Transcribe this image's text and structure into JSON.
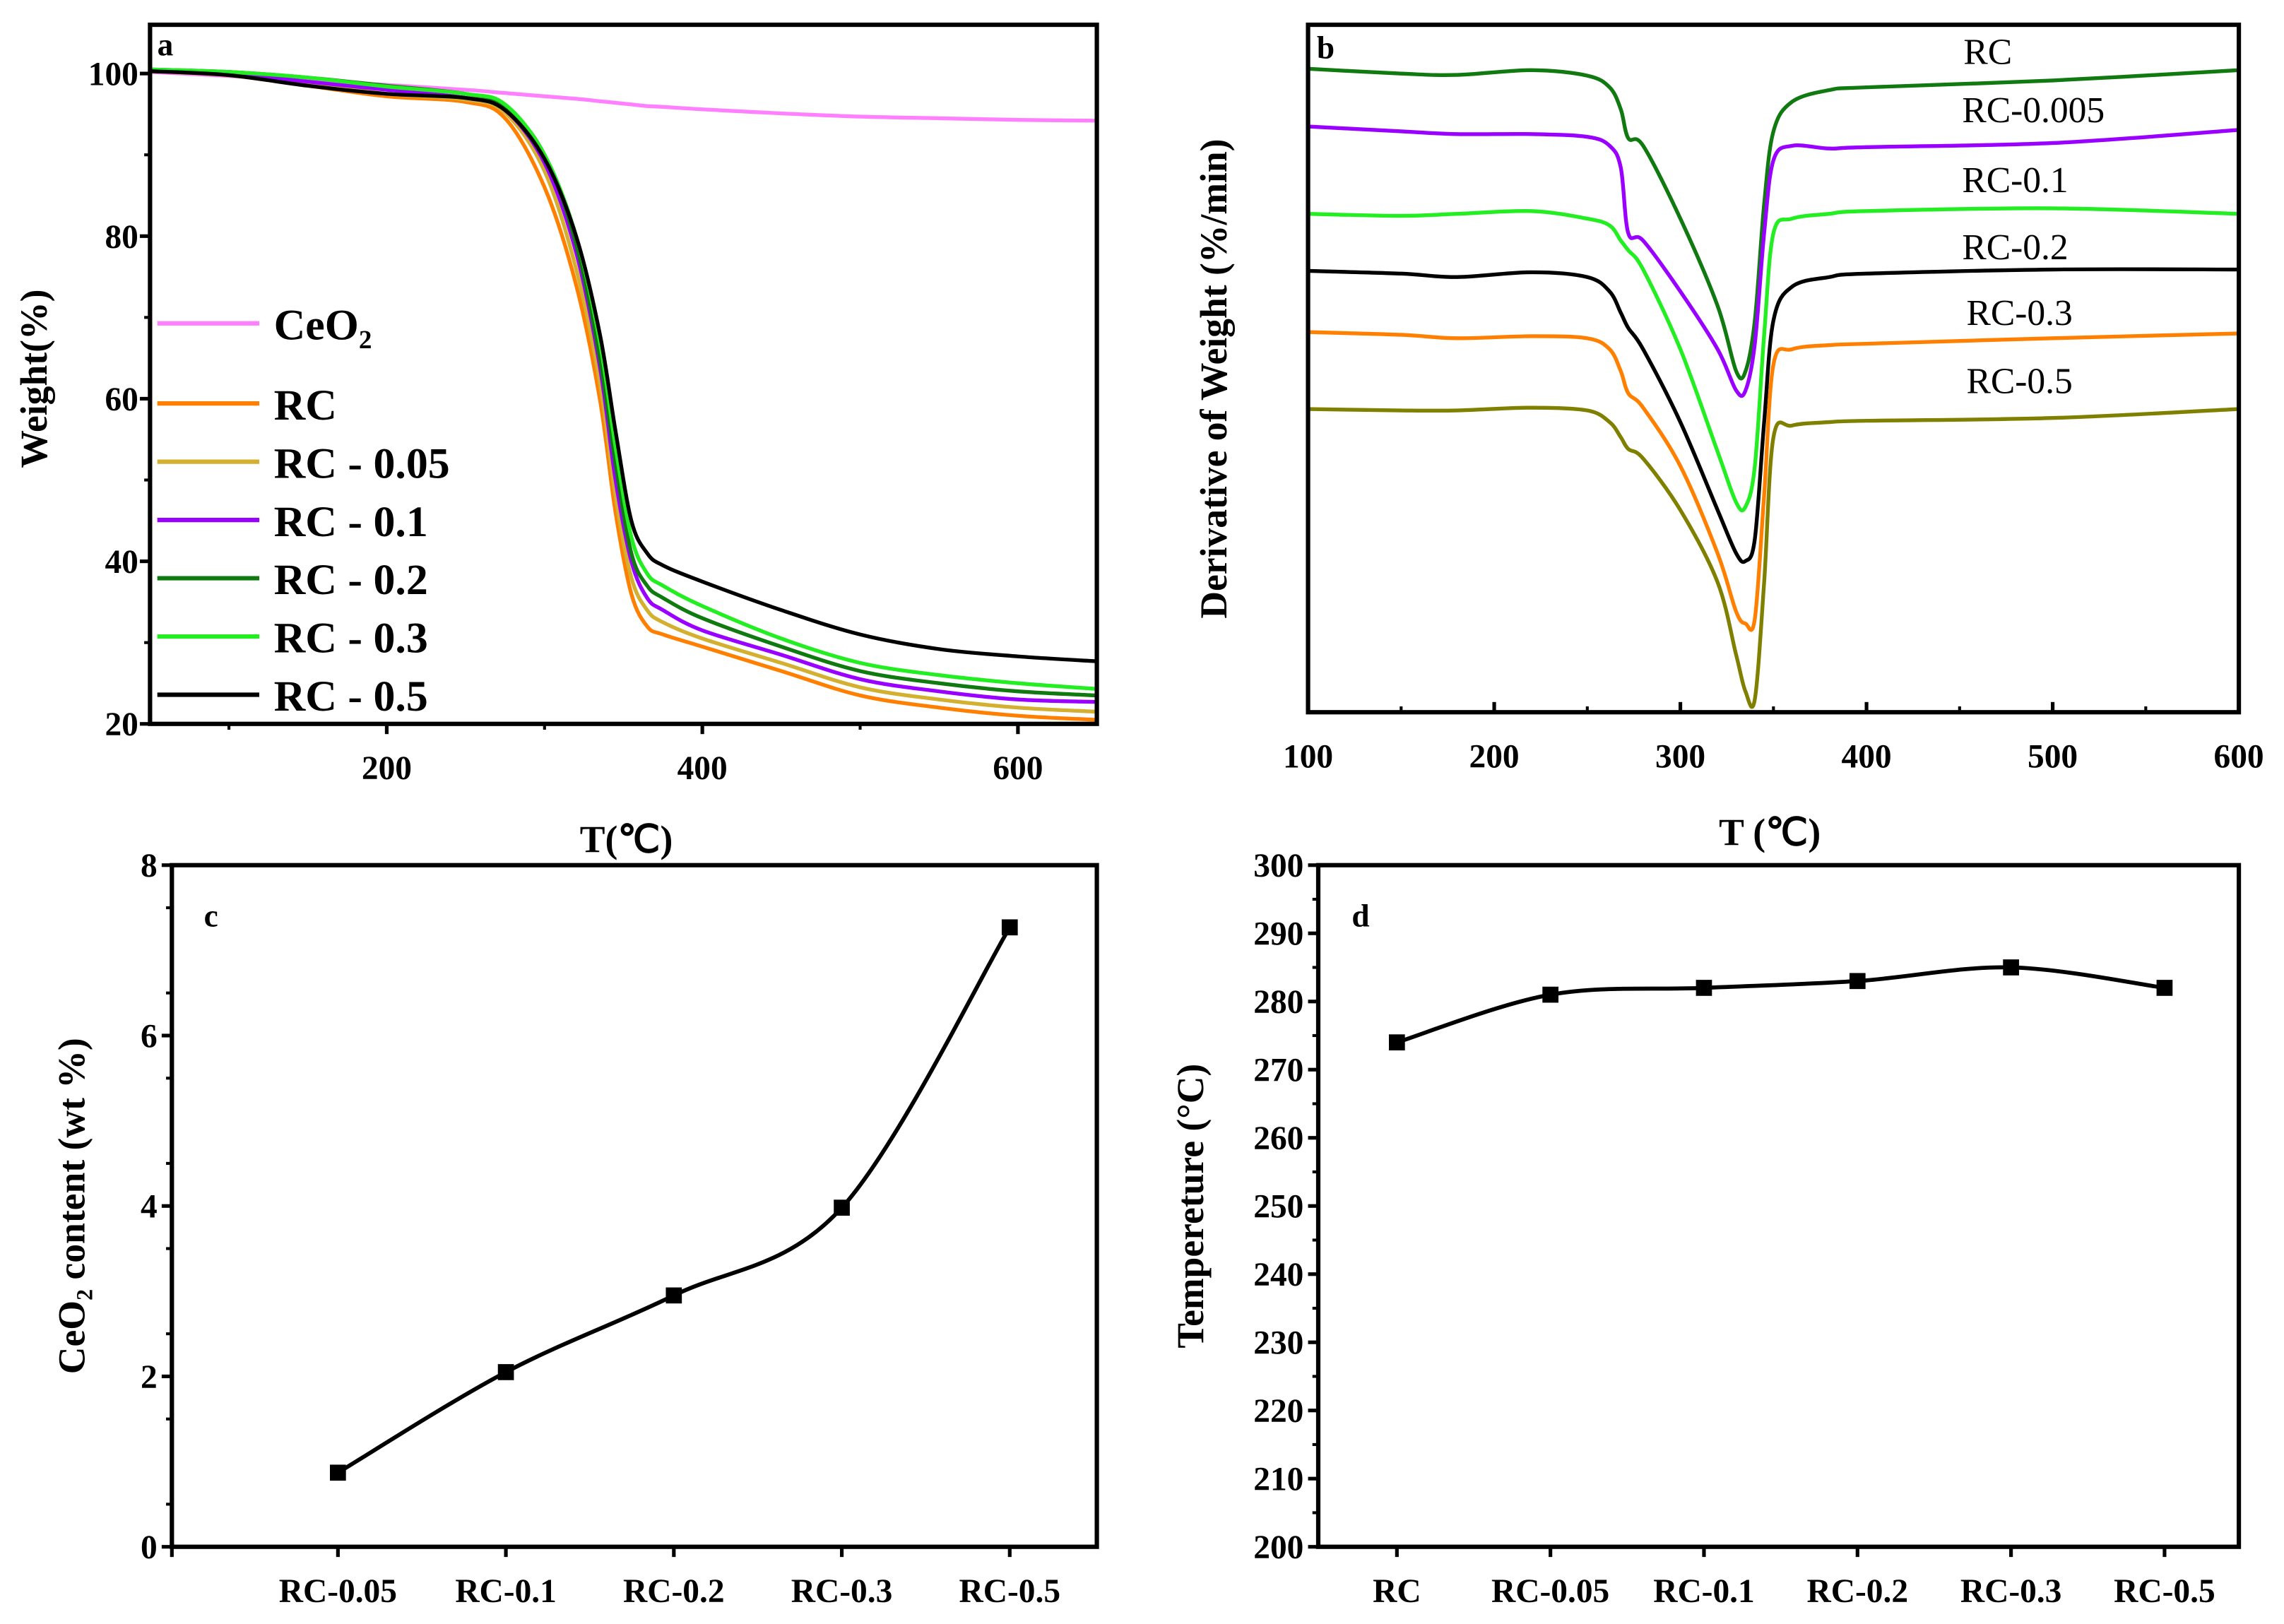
{
  "chart_data": [
    {
      "panel": "a",
      "type": "line",
      "xlabel": "T(℃)",
      "ylabel": "Weight(%)",
      "xlim": [
        50,
        650
      ],
      "ylim": [
        20,
        106
      ],
      "xticks": [
        200,
        400,
        600
      ],
      "yticks": [
        20,
        40,
        60,
        80,
        100
      ],
      "legend_position": "center-left",
      "x": [
        50,
        100,
        150,
        200,
        250,
        275,
        300,
        320,
        335,
        345,
        355,
        365,
        375,
        400,
        450,
        500,
        550,
        600,
        650
      ],
      "series": [
        {
          "name": "CeO₂",
          "color": "#ff80ff",
          "values": [
            100.2,
            99.7,
            99.2,
            98.6,
            98.0,
            97.6,
            97.2,
            96.9,
            96.6,
            96.4,
            96.2,
            96.0,
            95.9,
            95.6,
            95.1,
            94.7,
            94.5,
            94.3,
            94.2
          ]
        },
        {
          "name": "RC",
          "color": "#ff8000",
          "values": [
            100.5,
            99.8,
            98.5,
            97.2,
            96.5,
            94.5,
            86,
            74,
            60,
            46,
            36,
            32,
            31,
            29.5,
            26.5,
            23.5,
            22,
            21,
            20.5
          ]
        },
        {
          "name": "RC - 0.05",
          "color": "#d4b030",
          "values": [
            100.3,
            99.8,
            98.8,
            97.5,
            96.8,
            95.2,
            88,
            76,
            62,
            48,
            38,
            34,
            32.5,
            30.5,
            27.5,
            24.5,
            23,
            22,
            21.5
          ]
        },
        {
          "name": "RC - 0.1",
          "color": "#9900ff",
          "values": [
            100.3,
            100,
            99,
            98,
            97,
            95.5,
            89,
            78,
            64,
            50,
            40,
            35.5,
            34,
            31.5,
            28.5,
            25.5,
            24,
            23,
            22.7
          ]
        },
        {
          "name": "RC - 0.2",
          "color": "#107a10",
          "values": [
            100.5,
            100.2,
            99.5,
            98.5,
            97.5,
            96,
            90,
            79,
            65,
            52,
            41,
            37,
            35.5,
            33,
            29.5,
            26.5,
            25,
            24,
            23.5
          ]
        },
        {
          "name": "RC - 0.3",
          "color": "#22ee22",
          "values": [
            100.5,
            100.2,
            99.5,
            98.4,
            97.5,
            96.2,
            90,
            80,
            67,
            54,
            43,
            38.5,
            37,
            34.5,
            30.5,
            27.5,
            26,
            25,
            24.3
          ]
        },
        {
          "name": "RC - 0.5",
          "color": "#000000",
          "values": [
            100.3,
            99.8,
            98.5,
            97.5,
            97,
            95.5,
            89.5,
            80,
            68,
            56,
            45,
            41,
            39.5,
            37.5,
            34,
            31,
            29.2,
            28.3,
            27.7
          ]
        }
      ]
    },
    {
      "panel": "b",
      "type": "line",
      "xlabel": "T (℃)",
      "ylabel": "Derivative of Weight (%/min)",
      "xlim": [
        100,
        600
      ],
      "ylim": [
        0,
        100
      ],
      "xticks": [
        100,
        200,
        300,
        400,
        500,
        600
      ],
      "yticks": [],
      "x": [
        100,
        150,
        180,
        220,
        250,
        262,
        268,
        272,
        280,
        300,
        320,
        330,
        335,
        340,
        345,
        350,
        360,
        380,
        400,
        500,
        600
      ],
      "series": [
        {
          "name": "RC",
          "color": "#107a10",
          "values": [
            93.6,
            92.9,
            92.7,
            93.4,
            92.6,
            90.9,
            87.7,
            83.5,
            82.4,
            71.8,
            59.1,
            49.6,
            49.6,
            57.0,
            73.9,
            84.5,
            88.8,
            90.5,
            90.9,
            91.9,
            93.4
          ]
        },
        {
          "name": "RC-0.005",
          "color": "#9900ff",
          "values": [
            85.2,
            84.5,
            84.1,
            84.1,
            83.7,
            82.4,
            79.2,
            69.7,
            68.6,
            61.2,
            52.8,
            46.8,
            46.8,
            53.6,
            69.7,
            80.3,
            82.4,
            82.0,
            82.2,
            82.8,
            84.7
          ]
        },
        {
          "name": "RC-0.1",
          "color": "#22ee22",
          "values": [
            72.5,
            72.2,
            72.5,
            72.9,
            71.8,
            70.8,
            68.6,
            67.2,
            64.4,
            52.8,
            37.9,
            30.5,
            29.9,
            35.8,
            54.9,
            69.7,
            71.8,
            72.5,
            72.9,
            73.3,
            72.5
          ]
        },
        {
          "name": "RC-0.2",
          "color": "#000000",
          "values": [
            64.2,
            63.8,
            63.3,
            64.0,
            63.3,
            61.2,
            58.1,
            55.9,
            52.8,
            42.2,
            29.4,
            23.1,
            22.0,
            25.2,
            42.2,
            57.0,
            61.9,
            63.3,
            63.8,
            64.4,
            64.4
          ]
        },
        {
          "name": "RC-0.3",
          "color": "#ff8000",
          "values": [
            55.3,
            54.9,
            54.4,
            54.7,
            54.4,
            52.8,
            49.6,
            46.4,
            44.3,
            35.8,
            23.1,
            14.6,
            12.9,
            13.6,
            31.6,
            50.6,
            52.8,
            53.4,
            53.6,
            54.4,
            55.1
          ]
        },
        {
          "name": "RC-0.5",
          "color": "#808000",
          "values": [
            44.1,
            43.9,
            43.9,
            44.3,
            43.9,
            42.2,
            40.0,
            38.3,
            36.9,
            29.4,
            18.9,
            8.3,
            3.0,
            1.9,
            18.9,
            40.0,
            41.7,
            42.2,
            42.4,
            42.8,
            44.1
          ]
        }
      ]
    },
    {
      "panel": "c",
      "type": "line",
      "xlabel": "",
      "ylabel": "CeO₂ content (wt %)",
      "categories": [
        "RC-0.05",
        "RC-0.1",
        "RC-0.2",
        "RC-0.3",
        "RC-0.5"
      ],
      "values": [
        0.87,
        2.05,
        2.95,
        3.98,
        7.27
      ],
      "ylim": [
        0,
        8
      ],
      "yticks": [
        0,
        2,
        4,
        6,
        8
      ],
      "marker": "square"
    },
    {
      "panel": "d",
      "type": "line",
      "xlabel": "",
      "ylabel": "Tempereture (°C)",
      "categories": [
        "RC",
        "RC-0.05",
        "RC-0.1",
        "RC-0.2",
        "RC-0.3",
        "RC-0.5"
      ],
      "values": [
        274,
        281,
        282,
        283,
        285,
        282
      ],
      "ylim": [
        200,
        300
      ],
      "yticks": [
        200,
        210,
        220,
        230,
        240,
        250,
        260,
        270,
        280,
        290,
        300
      ],
      "marker": "square"
    }
  ]
}
